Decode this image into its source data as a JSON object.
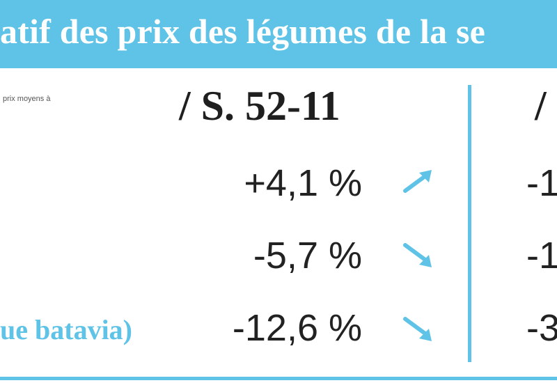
{
  "header": {
    "title": "atif des prix des légumes de la se"
  },
  "note": "prix moyens à",
  "columns": [
    {
      "label": "/ S. 52-11"
    },
    {
      "label": "/"
    }
  ],
  "rows": [
    {
      "label": "",
      "change": "+4,1 %",
      "trend": "up",
      "change2": "-1"
    },
    {
      "label": "",
      "change": "-5,7 %",
      "trend": "down",
      "change2": "-1"
    },
    {
      "label": "ue batavia)",
      "change": "-12,6 %",
      "trend": "down",
      "change2": "-3"
    }
  ],
  "colors": {
    "accent": "#5ec3e6",
    "text": "#222222"
  },
  "icons": {
    "up": "arrow-up-right-icon",
    "down": "arrow-down-right-icon"
  }
}
